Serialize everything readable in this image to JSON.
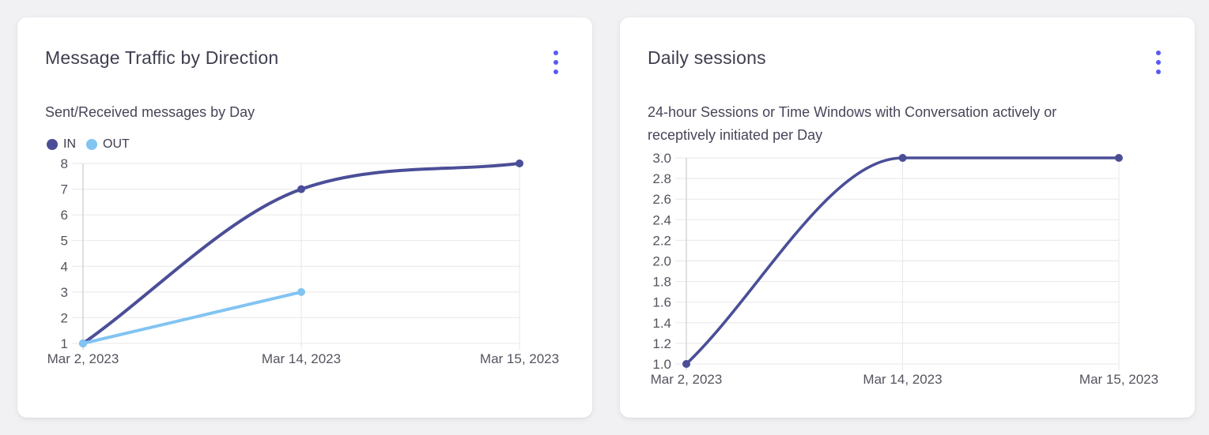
{
  "page": {
    "background": "#f1f1f4"
  },
  "colors": {
    "card_background": "#ffffff",
    "title_text": "#3e3e50",
    "subtitle_text": "#46465a",
    "tick_text": "#54545f",
    "gridline": "#e7e7eb",
    "axis_line": "#d2d2d9",
    "menu_accent": "#5a5af2",
    "series_in": "#4b4e97",
    "series_out": "#82c4f2"
  },
  "cards": [
    {
      "title": "Message Traffic by Direction",
      "subtitle": "Sent/Received messages by Day",
      "menu_icon": "kebab-menu-icon"
    },
    {
      "title": "Daily sessions",
      "subtitle": "24-hour Sessions or Time Windows with Conversation actively or receptively initiated per Day",
      "menu_icon": "kebab-menu-icon"
    }
  ],
  "chart_data": [
    {
      "type": "line",
      "title": "Message Traffic by Direction",
      "subtitle": "Sent/Received messages by Day",
      "categories": [
        "Mar 2, 2023",
        "Mar 14, 2023",
        "Mar 15, 2023"
      ],
      "series": [
        {
          "name": "IN",
          "color": "#4b4e97",
          "values": [
            1,
            7,
            8
          ]
        },
        {
          "name": "OUT",
          "color": "#82c4f2",
          "values": [
            1,
            3,
            null
          ]
        }
      ],
      "ylim": [
        1,
        8
      ],
      "ytick_step": 1,
      "ytick_decimals": 0,
      "legend_position": "top-left",
      "grid": true,
      "curve": "monotone"
    },
    {
      "type": "line",
      "title": "Daily sessions",
      "subtitle": "24-hour Sessions or Time Windows with Conversation actively or receptively initiated per Day",
      "categories": [
        "Mar 2, 2023",
        "Mar 14, 2023",
        "Mar 15, 2023"
      ],
      "series": [
        {
          "name": "Daily sessions",
          "color": "#4b4e97",
          "values": [
            1.0,
            3.0,
            3.0
          ]
        }
      ],
      "ylim": [
        1.0,
        3.0
      ],
      "ytick_step": 0.2,
      "ytick_decimals": 1,
      "legend_position": "none",
      "grid": true,
      "curve": "monotone"
    }
  ]
}
